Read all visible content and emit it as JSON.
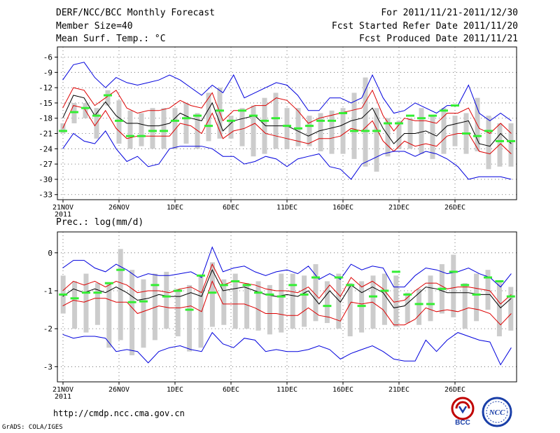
{
  "header": {
    "title": "DERF/NCC/BCC Monthly Forecast",
    "member_size": "Member Size=40",
    "variable": "Mean Surf. Temp.: °C",
    "forecast_period": "For 2011/11/21-2011/12/30",
    "started_refer_date": "Fcst Started Refer Date 2011/11/20",
    "produced_date": "Fcst Produced Date 2011/11/21"
  },
  "footer": {
    "url": "http://cmdp.ncc.cma.gov.cn",
    "grads": "GrADS: COLA/IGES",
    "logo_bcc": "BCC",
    "logo_ncc": "NCC"
  },
  "colors": {
    "envelope": "#0000dd",
    "spread": "#dd0000",
    "mean": "#000000",
    "box": "#cccccc",
    "median": "#33ee33",
    "grid": "#555555"
  },
  "chart_data": [
    {
      "type": "line",
      "title": "Mean Surf. Temp.: °C",
      "x_tick_labels": [
        "21NOV",
        "26NOV",
        "1DEC",
        "6DEC",
        "11DEC",
        "16DEC",
        "21DEC",
        "26DEC"
      ],
      "x_year_label": "2011",
      "y_ticks": [
        -6,
        -9,
        -12,
        -15,
        -18,
        -21,
        -24,
        -27,
        -30,
        -33
      ],
      "ylim": [
        -34,
        -4
      ],
      "days": 40,
      "series": [
        {
          "name": "max",
          "values": [
            -10.5,
            -7.5,
            -7,
            -10,
            -12,
            -10,
            -11,
            -11.5,
            -11,
            -10.5,
            -9.5,
            -10.5,
            -12,
            -13.5,
            -11.5,
            -13,
            -9.5,
            -14,
            -13,
            -12,
            -11,
            -11.5,
            -13.5,
            -16.5,
            -16.5,
            -14,
            -14,
            -15,
            -14,
            -9.5,
            -14,
            -17,
            -16.5,
            -15,
            -16,
            -17,
            -15.5,
            -15.5,
            -11.5,
            -17,
            -18.5,
            -17,
            -18.5
          ]
        },
        {
          "name": "upper",
          "values": [
            -16,
            -12,
            -12.5,
            -15.5,
            -14,
            -12.5,
            -16,
            -17,
            -16.5,
            -16.5,
            -16,
            -14.5,
            -15.5,
            -16,
            -13,
            -18.5,
            -16.5,
            -16.5,
            -15.5,
            -15.5,
            -14,
            -14.5,
            -16.5,
            -19,
            -18,
            -17.5,
            -17,
            -16.5,
            -16,
            -12.5,
            -17.5,
            -20.5,
            -18,
            -18.5,
            -18.5,
            -19,
            -17,
            -17,
            -16,
            -20,
            -21,
            -19,
            -21
          ]
        },
        {
          "name": "mean",
          "values": [
            -18,
            -13.5,
            -14,
            -17.5,
            -14.8,
            -17.5,
            -19,
            -19,
            -19.5,
            -19.5,
            -19,
            -17,
            -18,
            -18.5,
            -15,
            -20.5,
            -18.5,
            -18,
            -17.5,
            -19.5,
            -19.5,
            -19.5,
            -20.5,
            -21.5,
            -20.5,
            -20,
            -19.5,
            -18.5,
            -18,
            -16,
            -20,
            -23,
            -21,
            -21,
            -20.5,
            -21.5,
            -19.5,
            -19,
            -18.5,
            -23,
            -23.5,
            -21,
            -23
          ]
        },
        {
          "name": "lower",
          "values": [
            -20,
            -15.5,
            -16,
            -19.5,
            -16.5,
            -20,
            -22,
            -21.5,
            -21.5,
            -21.5,
            -21.5,
            -19,
            -19.5,
            -21,
            -17,
            -22,
            -20.5,
            -20,
            -19,
            -21,
            -21.5,
            -22,
            -22.5,
            -23,
            -22,
            -22,
            -21.5,
            -20,
            -20.5,
            -18.5,
            -22.5,
            -24.5,
            -22.5,
            -23.5,
            -23,
            -23.5,
            -21.5,
            -21,
            -21,
            -24.5,
            -25,
            -23,
            -25
          ]
        },
        {
          "name": "min",
          "values": [
            -24,
            -21,
            -22.5,
            -23,
            -20.5,
            -24,
            -26.5,
            -25.5,
            -27.5,
            -27,
            -24,
            -23.5,
            -23.5,
            -23.5,
            -24,
            -25.5,
            -25.5,
            -27,
            -26.5,
            -25.5,
            -26,
            -27.5,
            -26,
            -25.5,
            -25,
            -27.5,
            -28,
            -30,
            -27,
            -26,
            -25,
            -24.5,
            -24.5,
            -25.5,
            -24.5,
            -25,
            -26,
            -27.5,
            -30,
            -29.5,
            -29.5,
            -29.5,
            -30
          ]
        }
      ],
      "boxes": {
        "high": [
          -19,
          -15,
          -15,
          -16,
          -12.5,
          -14.5,
          -16.5,
          -17,
          -16,
          -16,
          -16,
          -15,
          -17,
          -13,
          -12,
          -17.5,
          -16,
          -15.5,
          -14,
          -13,
          -16,
          -16,
          -17.5,
          -17,
          -16.5,
          -16,
          -13,
          -10,
          -16,
          -18,
          -18.5,
          -18,
          -16,
          -17.5,
          -16,
          -17.5,
          -17,
          -14,
          -17.5,
          -19,
          -19
        ],
        "low": [
          -21,
          -19,
          -18,
          -22,
          -15.5,
          -23,
          -24,
          -23.5,
          -24,
          -24,
          -24,
          -23,
          -24,
          -22.5,
          -22,
          -22,
          -23.5,
          -25.5,
          -25,
          -24,
          -24,
          -23.5,
          -23.5,
          -24.5,
          -25,
          -25,
          -26,
          -27.5,
          -28.5,
          -25.5,
          -24,
          -24,
          -25,
          -26,
          -25,
          -23.5,
          -25,
          -24.5,
          -28,
          -27.5,
          -27.5
        ],
        "median": [
          -20.5,
          -16.8,
          -16,
          -17.5,
          -13.5,
          -18.5,
          -21.5,
          -21.5,
          -20.5,
          -20.5,
          -18.5,
          -18,
          -17.5,
          -19.5,
          -16.5,
          -18.5,
          -16.5,
          -17.5,
          -18.5,
          -18,
          -19.5,
          -20,
          -19.5,
          -18.5,
          -18.5,
          -17,
          -20.5,
          -20.5,
          -20.5,
          -19,
          -19,
          -17.5,
          -18,
          -17.5,
          -16.5,
          -15.5,
          -21,
          -21.5,
          -20.5,
          -22.5,
          -22.5
        ]
      }
    },
    {
      "type": "line",
      "title": "Prec.: log(mm/d)",
      "x_tick_labels": [
        "21NOV",
        "26NOV",
        "1DEC",
        "6DEC",
        "11DEC",
        "16DEC",
        "21DEC",
        "26DEC"
      ],
      "x_year_label": "2011",
      "y_ticks": [
        0,
        -1,
        -2,
        -3
      ],
      "ylim": [
        -3.4,
        0.55
      ],
      "days": 40,
      "series": [
        {
          "name": "max",
          "values": [
            -0.4,
            -0.2,
            -0.2,
            -0.4,
            -0.5,
            -0.3,
            -0.45,
            -0.65,
            -0.55,
            -0.6,
            -0.6,
            -0.55,
            -0.5,
            -0.65,
            0.15,
            -0.5,
            -0.4,
            -0.35,
            -0.5,
            -0.6,
            -0.5,
            -0.45,
            -0.55,
            -0.35,
            -0.7,
            -0.55,
            -0.7,
            -0.3,
            -0.45,
            -0.35,
            -0.4,
            -0.9,
            -0.9,
            -0.6,
            -0.4,
            -0.45,
            -0.55,
            -0.5,
            -0.4,
            -0.55,
            -0.65,
            -0.9,
            -0.55
          ]
        },
        {
          "name": "upper",
          "values": [
            -1,
            -0.75,
            -0.85,
            -0.75,
            -0.9,
            -0.75,
            -0.85,
            -1.05,
            -1,
            -1,
            -1.05,
            -0.95,
            -0.9,
            -1.05,
            -0.3,
            -0.85,
            -0.75,
            -0.8,
            -0.85,
            -0.95,
            -1,
            -1,
            -1.05,
            -0.9,
            -1.2,
            -0.85,
            -1.15,
            -0.65,
            -0.9,
            -0.75,
            -0.95,
            -1.3,
            -1.25,
            -1,
            -0.8,
            -0.8,
            -0.95,
            -0.9,
            -0.9,
            -0.95,
            -1,
            -1.35,
            -1.1
          ]
        },
        {
          "name": "mean",
          "values": [
            -1.15,
            -0.95,
            -1.05,
            -0.95,
            -1.05,
            -0.9,
            -1.05,
            -1.25,
            -1.2,
            -1.1,
            -1.15,
            -1.15,
            -1.05,
            -1.15,
            -0.45,
            -1,
            -0.95,
            -0.9,
            -1,
            -1.1,
            -1.15,
            -1.1,
            -1.15,
            -1,
            -1.35,
            -1,
            -1.3,
            -0.85,
            -1.05,
            -0.9,
            -1.05,
            -1.45,
            -1.4,
            -1.15,
            -0.9,
            -0.95,
            -1.05,
            -1.05,
            -1.05,
            -1.1,
            -1.1,
            -1.45,
            -1.2
          ]
        },
        {
          "name": "lower",
          "values": [
            -1.4,
            -1.25,
            -1.3,
            -1.2,
            -1.2,
            -1.3,
            -1.3,
            -1.6,
            -1.5,
            -1.4,
            -1.45,
            -1.45,
            -1.4,
            -1.55,
            -0.75,
            -1.35,
            -1.35,
            -1.35,
            -1.45,
            -1.6,
            -1.6,
            -1.65,
            -1.65,
            -1.45,
            -1.65,
            -1.7,
            -1.8,
            -1.3,
            -1.35,
            -1.3,
            -1.5,
            -1.9,
            -1.9,
            -1.75,
            -1.45,
            -1.55,
            -1.5,
            -1.55,
            -1.45,
            -1.5,
            -1.6,
            -1.9,
            -1.6
          ]
        },
        {
          "name": "min",
          "values": [
            -2.15,
            -2.25,
            -2.2,
            -2.2,
            -2.25,
            -2.6,
            -2.55,
            -2.6,
            -2.9,
            -2.6,
            -2.5,
            -2.45,
            -2.55,
            -2.6,
            -2.1,
            -2.4,
            -2.5,
            -2.25,
            -2.3,
            -2.6,
            -2.55,
            -2.6,
            -2.6,
            -2.55,
            -2.45,
            -2.55,
            -2.8,
            -2.65,
            -2.55,
            -2.45,
            -2.6,
            -2.8,
            -2.85,
            -2.85,
            -2.3,
            -2.6,
            -2.3,
            -2.1,
            -2.2,
            -2.3,
            -2.35,
            -2.95,
            -2.5
          ]
        }
      ],
      "boxes": {
        "high": [
          -0.6,
          -0.75,
          -0.55,
          -0.8,
          -0.8,
          0.1,
          -0.45,
          -0.7,
          -0.55,
          -0.5,
          -0.95,
          -0.85,
          -0.6,
          -0.25,
          -0.7,
          -0.55,
          -0.8,
          -0.75,
          -0.85,
          -0.55,
          -0.55,
          -0.6,
          -0.3,
          -0.75,
          -0.55,
          -0.8,
          -0.75,
          -0.6,
          -0.55,
          -0.6,
          -1.05,
          -0.95,
          -0.6,
          -0.3,
          -0.05,
          -0.8,
          -0.55,
          -0.45,
          -0.75,
          -0.9
        ],
        "low": [
          -1.6,
          -2.0,
          -2.1,
          -1.9,
          -2.5,
          -2.3,
          -2.7,
          -2.5,
          -2.3,
          -2.0,
          -2.2,
          -2.6,
          -2.5,
          -1.95,
          -1.9,
          -2.0,
          -2.0,
          -2.05,
          -2.15,
          -2.1,
          -2.0,
          -1.95,
          -1.8,
          -1.85,
          -2.0,
          -2.2,
          -2.1,
          -2.0,
          -1.9,
          -1.95,
          -1.85,
          -1.9,
          -1.8,
          -1.6,
          -1.7,
          -2.0,
          -1.8,
          -1.5,
          -2.2,
          -2.05
        ],
        "median": [
          -1.1,
          -1.2,
          -1.05,
          -1.05,
          -0.8,
          -0.45,
          -1.3,
          -1.28,
          -0.85,
          -1.15,
          -1.0,
          -1.5,
          -0.6,
          -1.05,
          -0.85,
          -0.75,
          -0.85,
          -1.05,
          -1.1,
          -1.15,
          -0.85,
          -1.1,
          -0.65,
          -1.4,
          -0.65,
          -0.85,
          -1.4,
          -1.15,
          -1.0,
          -0.5,
          -1.1,
          -1.35,
          -1.35,
          -0.95,
          -0.5,
          -0.85,
          -1.1,
          -0.65,
          -0.75,
          -1.15
        ]
      }
    }
  ]
}
